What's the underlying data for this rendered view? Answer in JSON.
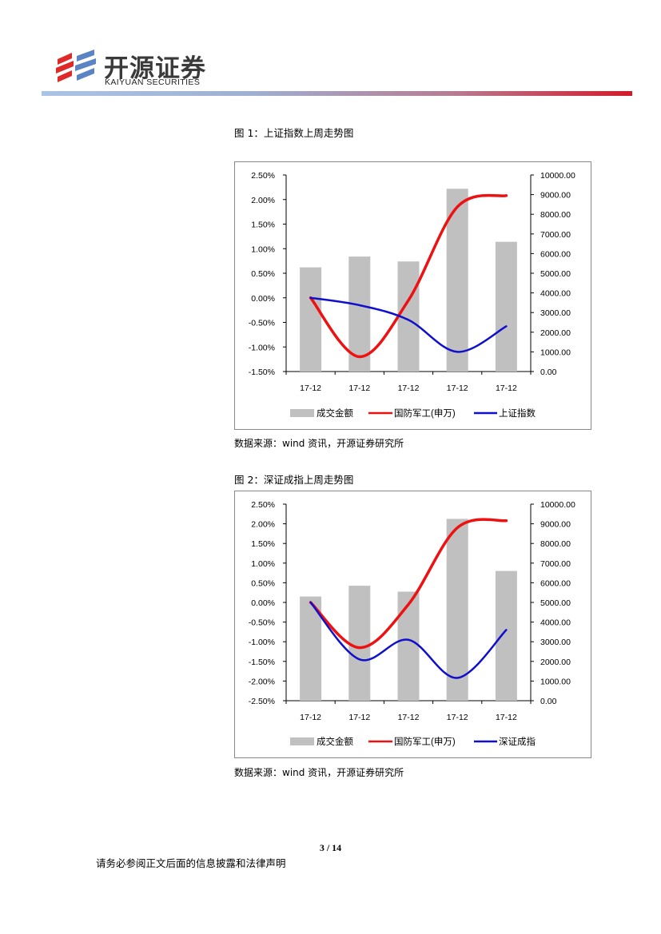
{
  "header": {
    "logo_cn": "开源证券",
    "logo_en": "KAIYUAN SECURITIES",
    "bar_colors": [
      "#aac4e6",
      "#d21a2a"
    ]
  },
  "figures": [
    {
      "title": "图 1：上证指数上周走势图",
      "source": "数据来源：wind 资讯，开源证券研究所"
    },
    {
      "title": "图 2：深证成指上周走势图",
      "source": "数据来源：wind 资讯，开源证券研究所"
    }
  ],
  "chart_data": [
    {
      "type": "bar+line",
      "categories": [
        "17-12",
        "17-12",
        "17-12",
        "17-12",
        "17-12"
      ],
      "left_axis": {
        "ticks": [
          "2.50%",
          "2.00%",
          "1.50%",
          "1.00%",
          "0.50%",
          "0.00%",
          "-0.50%",
          "-1.00%",
          "-1.50%"
        ],
        "ylim": [
          -1.5,
          2.5
        ]
      },
      "right_axis": {
        "ticks": [
          "10000.00",
          "9000.00",
          "8000.00",
          "7000.00",
          "6000.00",
          "5000.00",
          "4000.00",
          "3000.00",
          "2000.00",
          "1000.00",
          "0.00"
        ],
        "ylim": [
          0,
          10000
        ]
      },
      "series": [
        {
          "name": "成交金额",
          "type": "bar",
          "axis": "right",
          "color": "#c0c0c0",
          "values": [
            5300,
            5850,
            5600,
            9300,
            6600
          ]
        },
        {
          "name": "国防军工(申万)",
          "type": "line",
          "axis": "left",
          "color": "#ee1111",
          "values": [
            0.0,
            -1.2,
            -0.05,
            1.85,
            2.08
          ]
        },
        {
          "name": "上证指数",
          "type": "line",
          "axis": "left",
          "color": "#1010cc",
          "values": [
            0.0,
            -0.15,
            -0.45,
            -1.1,
            -0.58
          ]
        }
      ],
      "legend": [
        "成交金额",
        "国防军工(申万)",
        "上证指数"
      ],
      "legend_position": "bottom"
    },
    {
      "type": "bar+line",
      "categories": [
        "17-12",
        "17-12",
        "17-12",
        "17-12",
        "17-12"
      ],
      "left_axis": {
        "ticks": [
          "2.50%",
          "2.00%",
          "1.50%",
          "1.00%",
          "0.50%",
          "0.00%",
          "-0.50%",
          "-1.00%",
          "-1.50%",
          "-2.00%",
          "-2.50%"
        ],
        "ylim": [
          -2.5,
          2.5
        ]
      },
      "right_axis": {
        "ticks": [
          "10000.00",
          "9000.00",
          "8000.00",
          "7000.00",
          "6000.00",
          "5000.00",
          "4000.00",
          "3000.00",
          "2000.00",
          "1000.00",
          "0.00"
        ],
        "ylim": [
          0,
          10000
        ]
      },
      "series": [
        {
          "name": "成交金额",
          "type": "bar",
          "axis": "right",
          "color": "#c0c0c0",
          "values": [
            5300,
            5850,
            5550,
            9250,
            6600
          ]
        },
        {
          "name": "国防军工(申万)",
          "type": "line",
          "axis": "left",
          "color": "#ee1111",
          "values": [
            0.0,
            -1.15,
            -0.05,
            1.9,
            2.08
          ]
        },
        {
          "name": "深证成指",
          "type": "line",
          "axis": "left",
          "color": "#1010cc",
          "values": [
            0.0,
            -1.45,
            -0.95,
            -1.92,
            -0.7
          ]
        }
      ],
      "legend": [
        "成交金额",
        "国防军工(申万)",
        "深证成指"
      ],
      "legend_position": "bottom"
    }
  ],
  "footer": {
    "page": "3 / 14",
    "disclaimer": "请务必参阅正文后面的信息披露和法律声明"
  }
}
